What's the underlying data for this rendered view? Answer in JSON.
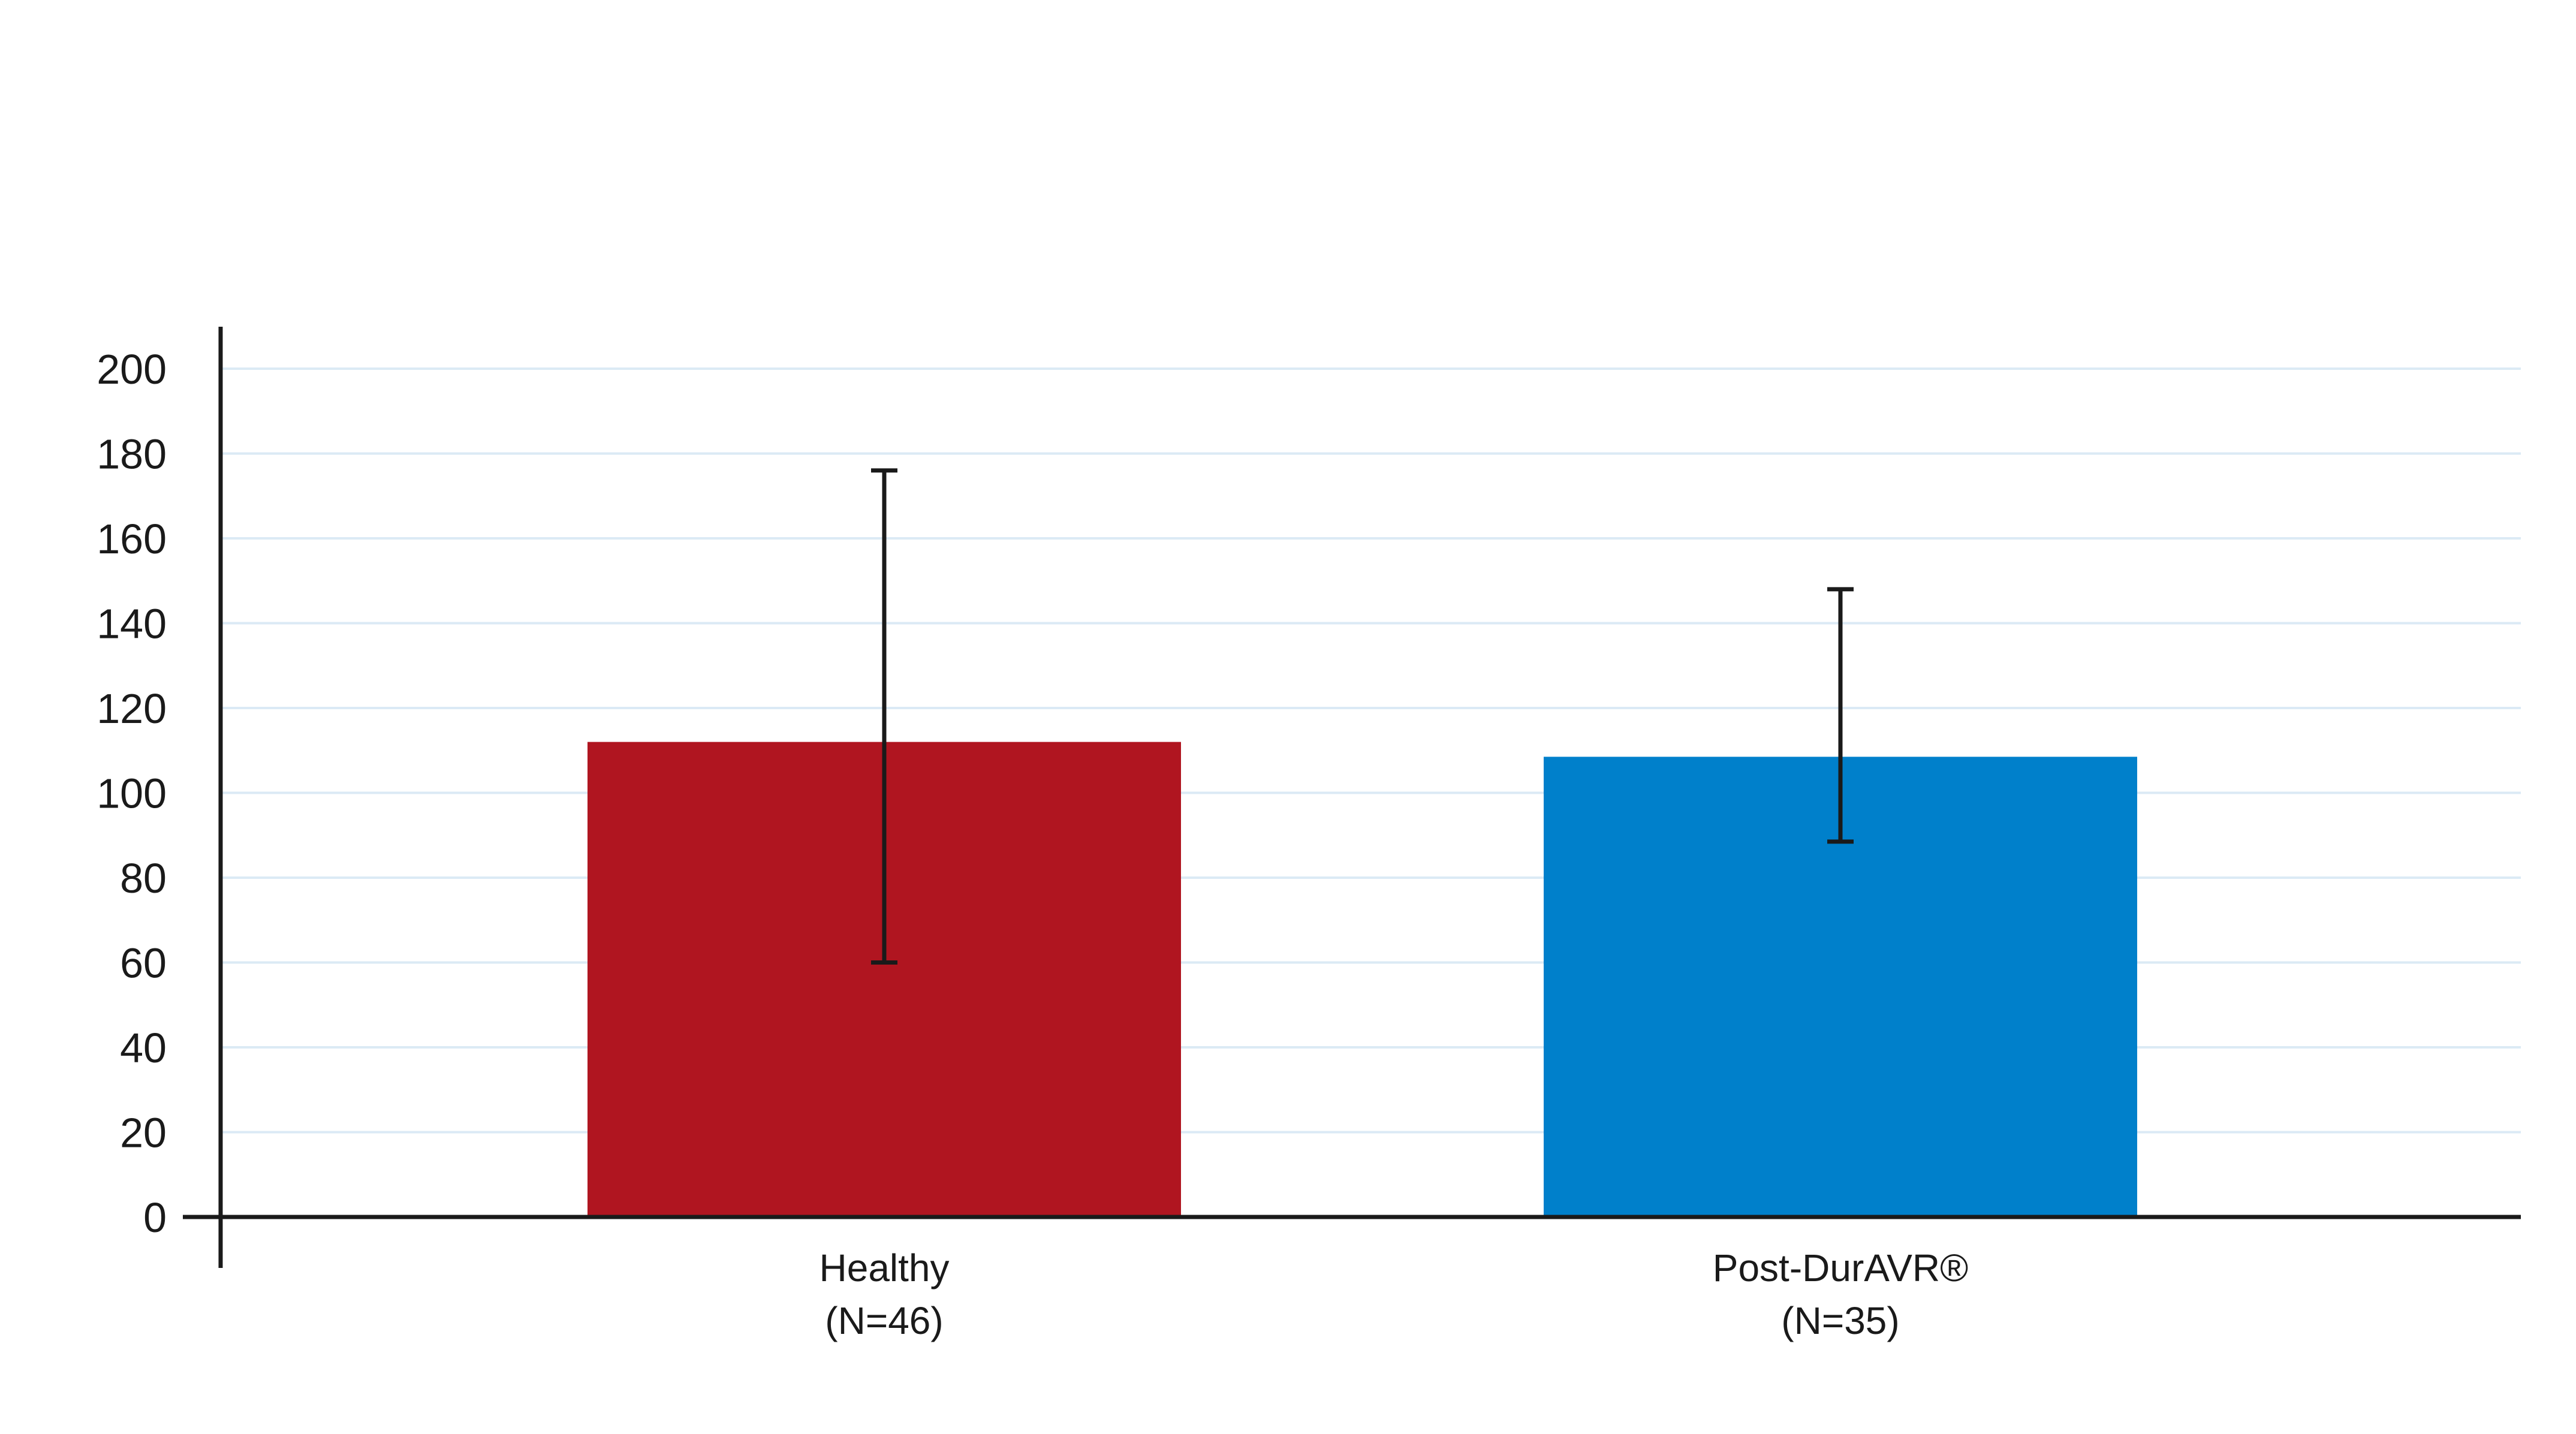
{
  "chart_data": {
    "type": "bar",
    "title": "",
    "xlabel": "",
    "ylabel": "",
    "ylim": [
      0,
      200
    ],
    "y_ticks": [
      0,
      20,
      40,
      60,
      80,
      100,
      120,
      140,
      160,
      180,
      200
    ],
    "grid": true,
    "categories": [
      {
        "name": "Healthy",
        "sub": "(N=46)"
      },
      {
        "name": "Post-DurAVR®",
        "sub": "(N=35)"
      }
    ],
    "values": [
      112,
      108.5
    ],
    "error_bars": [
      {
        "low": 60,
        "high": 176
      },
      {
        "low": 88.5,
        "high": 148
      }
    ],
    "colors": [
      "#b01520",
      "#0080cb"
    ],
    "grid_color": "#dbeaf5",
    "axis_color": "#1a1a1a"
  }
}
